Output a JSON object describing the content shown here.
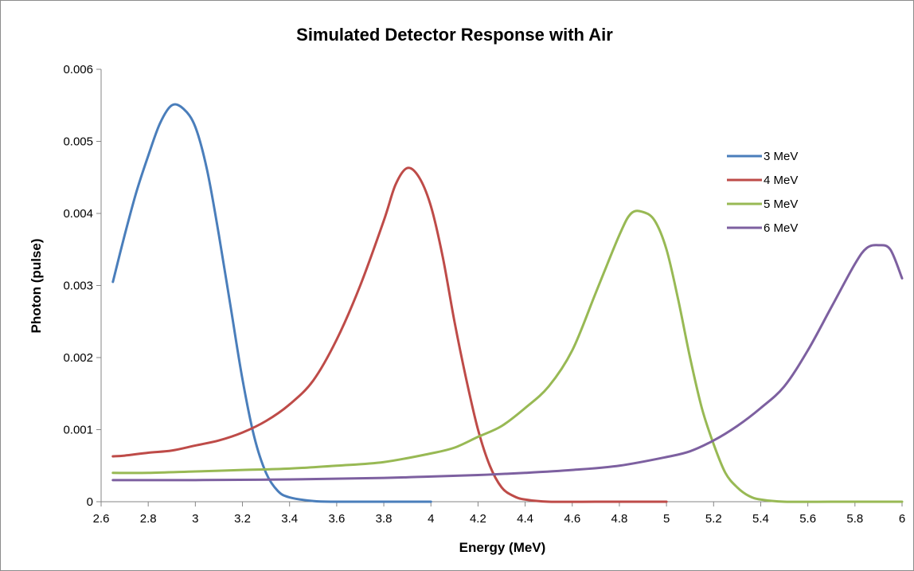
{
  "chart_data": {
    "type": "line",
    "title": "Simulated Detector Response with Air",
    "xlabel": "Energy (MeV)",
    "ylabel": "Photon (pulse)",
    "xlim": [
      2.6,
      6
    ],
    "ylim": [
      0,
      0.006
    ],
    "x_ticks": [
      "2.6",
      "2.8",
      "3",
      "3.2",
      "3.4",
      "3.6",
      "3.8",
      "4",
      "4.2",
      "4.4",
      "4.6",
      "4.8",
      "5",
      "5.2",
      "5.4",
      "5.6",
      "5.8",
      "6"
    ],
    "y_ticks": [
      "0",
      "0.001",
      "0.002",
      "0.003",
      "0.004",
      "0.005",
      "0.006"
    ],
    "grid": false,
    "legend_position": "right",
    "series": [
      {
        "name": "3 MeV",
        "color": "#4a7ebb",
        "points": [
          [
            2.65,
            0.00305
          ],
          [
            2.7,
            0.0037
          ],
          [
            2.75,
            0.0043
          ],
          [
            2.8,
            0.0048
          ],
          [
            2.85,
            0.00525
          ],
          [
            2.9,
            0.0055
          ],
          [
            2.95,
            0.00545
          ],
          [
            3.0,
            0.0052
          ],
          [
            3.05,
            0.0046
          ],
          [
            3.1,
            0.0037
          ],
          [
            3.15,
            0.0027
          ],
          [
            3.2,
            0.0017
          ],
          [
            3.25,
            0.0009
          ],
          [
            3.3,
            0.0004
          ],
          [
            3.35,
            0.00015
          ],
          [
            3.4,
            6e-05
          ],
          [
            3.5,
            1e-05
          ],
          [
            3.6,
            0.0
          ],
          [
            3.8,
            0.0
          ],
          [
            4.0,
            0.0
          ]
        ]
      },
      {
        "name": "4 MeV",
        "color": "#be4b48",
        "points": [
          [
            2.65,
            0.00063
          ],
          [
            2.7,
            0.00064
          ],
          [
            2.8,
            0.00068
          ],
          [
            2.9,
            0.00071
          ],
          [
            3.0,
            0.00078
          ],
          [
            3.1,
            0.00085
          ],
          [
            3.2,
            0.00096
          ],
          [
            3.3,
            0.00112
          ],
          [
            3.4,
            0.00135
          ],
          [
            3.5,
            0.00168
          ],
          [
            3.6,
            0.00225
          ],
          [
            3.7,
            0.003
          ],
          [
            3.8,
            0.0039
          ],
          [
            3.85,
            0.0044
          ],
          [
            3.9,
            0.00463
          ],
          [
            3.95,
            0.0045
          ],
          [
            4.0,
            0.0041
          ],
          [
            4.05,
            0.0034
          ],
          [
            4.1,
            0.0025
          ],
          [
            4.15,
            0.0017
          ],
          [
            4.2,
            0.001
          ],
          [
            4.25,
            0.0005
          ],
          [
            4.3,
            0.0002
          ],
          [
            4.35,
            8e-05
          ],
          [
            4.4,
            3e-05
          ],
          [
            4.5,
            0.0
          ],
          [
            4.7,
            0.0
          ],
          [
            5.0,
            0.0
          ]
        ]
      },
      {
        "name": "5 MeV",
        "color": "#98b954",
        "points": [
          [
            2.65,
            0.0004
          ],
          [
            2.8,
            0.0004
          ],
          [
            3.0,
            0.00042
          ],
          [
            3.2,
            0.00044
          ],
          [
            3.4,
            0.00046
          ],
          [
            3.6,
            0.0005
          ],
          [
            3.8,
            0.00055
          ],
          [
            4.0,
            0.00067
          ],
          [
            4.1,
            0.00075
          ],
          [
            4.2,
            0.0009
          ],
          [
            4.3,
            0.00105
          ],
          [
            4.4,
            0.0013
          ],
          [
            4.5,
            0.0016
          ],
          [
            4.6,
            0.0021
          ],
          [
            4.7,
            0.0029
          ],
          [
            4.8,
            0.0037
          ],
          [
            4.85,
            0.004
          ],
          [
            4.9,
            0.00402
          ],
          [
            4.95,
            0.0039
          ],
          [
            5.0,
            0.0035
          ],
          [
            5.05,
            0.0028
          ],
          [
            5.1,
            0.002
          ],
          [
            5.15,
            0.0013
          ],
          [
            5.2,
            0.0008
          ],
          [
            5.25,
            0.0004
          ],
          [
            5.3,
            0.0002
          ],
          [
            5.35,
            8e-05
          ],
          [
            5.4,
            3e-05
          ],
          [
            5.5,
            0.0
          ],
          [
            5.7,
            0.0
          ],
          [
            6.0,
            0.0
          ]
        ]
      },
      {
        "name": "6 MeV",
        "color": "#7d60a0",
        "points": [
          [
            2.65,
            0.0003
          ],
          [
            3.0,
            0.0003
          ],
          [
            3.4,
            0.00031
          ],
          [
            3.8,
            0.00033
          ],
          [
            4.0,
            0.00035
          ],
          [
            4.2,
            0.00037
          ],
          [
            4.4,
            0.0004
          ],
          [
            4.6,
            0.00044
          ],
          [
            4.8,
            0.0005
          ],
          [
            5.0,
            0.00062
          ],
          [
            5.1,
            0.0007
          ],
          [
            5.2,
            0.00085
          ],
          [
            5.3,
            0.00105
          ],
          [
            5.4,
            0.0013
          ],
          [
            5.5,
            0.0016
          ],
          [
            5.6,
            0.0021
          ],
          [
            5.7,
            0.0027
          ],
          [
            5.8,
            0.0033
          ],
          [
            5.85,
            0.00352
          ],
          [
            5.9,
            0.00356
          ],
          [
            5.95,
            0.0035
          ],
          [
            6.0,
            0.0031
          ]
        ]
      }
    ]
  }
}
